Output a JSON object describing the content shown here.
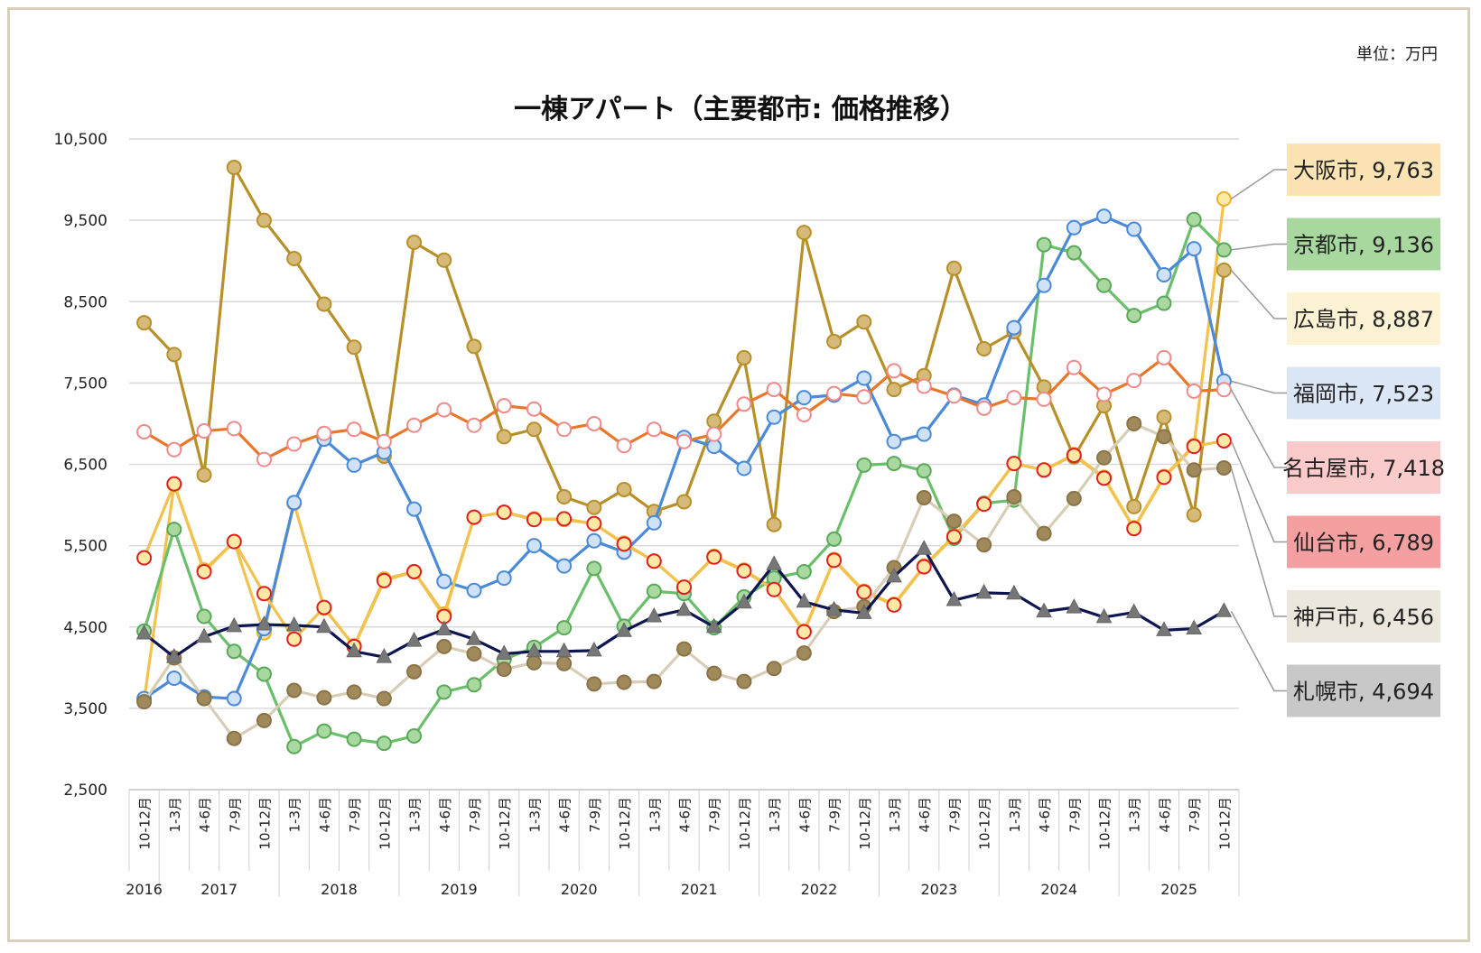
{
  "unit_label": "単位：万円",
  "chart_data": {
    "type": "line",
    "title": "一棟アパート（主要都市: 価格推移）",
    "ylim": [
      2500,
      10500
    ],
    "yticks": [
      2500,
      3500,
      4500,
      5500,
      6500,
      7500,
      8500,
      9500,
      10500
    ],
    "ytick_labels": [
      "2,500",
      "3,500",
      "4,500",
      "5,500",
      "6,500",
      "7,500",
      "8,500",
      "9,500",
      "10,500"
    ],
    "grid": true,
    "categories": [
      "10-12月",
      "1-3月",
      "4-6月",
      "7-9月",
      "10-12月",
      "1-3月",
      "4-6月",
      "7-9月",
      "10-12月",
      "1-3月",
      "4-6月",
      "7-9月",
      "10-12月",
      "1-3月",
      "4-6月",
      "7-9月",
      "10-12月",
      "1-3月",
      "4-6月",
      "7-9月",
      "10-12月",
      "1-3月",
      "4-6月",
      "7-9月",
      "10-12月",
      "1-3月",
      "4-6月",
      "7-9月",
      "10-12月",
      "1-3月",
      "4-6月",
      "7-9月",
      "10-12月",
      "1-3月",
      "4-6月",
      "7-9月",
      "10-12月"
    ],
    "years": [
      {
        "label": "2016",
        "start": 0,
        "end": 0
      },
      {
        "label": "2017",
        "start": 1,
        "end": 4
      },
      {
        "label": "2018",
        "start": 5,
        "end": 8
      },
      {
        "label": "2019",
        "start": 9,
        "end": 12
      },
      {
        "label": "2020",
        "start": 13,
        "end": 16
      },
      {
        "label": "2021",
        "start": 17,
        "end": 20
      },
      {
        "label": "2022",
        "start": 21,
        "end": 24
      },
      {
        "label": "2023",
        "start": 25,
        "end": 28
      },
      {
        "label": "2024",
        "start": 29,
        "end": 32
      },
      {
        "label": "2025",
        "start": 33,
        "end": 36
      }
    ],
    "series": [
      {
        "name": "大阪市",
        "label": "大阪市, 9,763",
        "line_color": "#f2c14e",
        "marker_fill": "#fce9a6",
        "marker_stroke": "#e8b32a",
        "marker": "circle",
        "label_bg": "#fbe3b3",
        "values": [
          3600,
          6250,
          5200,
          5550,
          4430,
          6020,
          4730,
          4270,
          5090,
          5180,
          4660,
          5850,
          5910,
          5830,
          5820,
          5770,
          5530,
          5310,
          4990,
          5370,
          5200,
          4970,
          4450,
          5330,
          4940,
          4780,
          5250,
          5620,
          6020,
          6510,
          6430,
          6620,
          6340,
          5720,
          6350,
          6730,
          9763
        ]
      },
      {
        "name": "京都市",
        "label": "京都市, 9,136",
        "line_color": "#6abf6b",
        "marker_fill": "#a9d9a0",
        "marker_stroke": "#5aa95a",
        "marker": "circle",
        "label_bg": "#a8d8a0",
        "values": [
          4450,
          5700,
          4630,
          4200,
          3920,
          3030,
          3220,
          3120,
          3070,
          3160,
          3700,
          3790,
          4100,
          4250,
          4490,
          5220,
          4510,
          4940,
          4910,
          4490,
          4870,
          5100,
          5180,
          5580,
          6490,
          6510,
          6420,
          5590,
          6020,
          6060,
          9200,
          9100,
          8700,
          8330,
          8480,
          9510,
          9136
        ]
      },
      {
        "name": "広島市",
        "label": "広島市, 8,887",
        "line_color": "#b8902a",
        "marker_fill": "#d6ba7a",
        "marker_stroke": "#b8902a",
        "marker": "circle",
        "label_bg": "#fdf2d3",
        "values": [
          8240,
          7850,
          6370,
          10150,
          9500,
          9030,
          8470,
          7940,
          6600,
          9230,
          9010,
          7950,
          6840,
          6930,
          6100,
          5970,
          6190,
          5920,
          6040,
          7030,
          7810,
          5760,
          9350,
          8010,
          8250,
          7420,
          7590,
          8910,
          7920,
          8130,
          7450,
          6590,
          7220,
          5980,
          7080,
          5880,
          8887
        ]
      },
      {
        "name": "福岡市",
        "label": "福岡市, 7,523",
        "line_color": "#4a8ad8",
        "marker_fill": "#cfe2f7",
        "marker_stroke": "#4a8ad8",
        "marker": "circle",
        "label_bg": "#dbe6f7",
        "values": [
          3620,
          3870,
          3640,
          3620,
          4480,
          6030,
          6810,
          6490,
          6650,
          5950,
          5060,
          4950,
          5100,
          5500,
          5250,
          5560,
          5420,
          5780,
          6830,
          6720,
          6450,
          7080,
          7320,
          7350,
          7560,
          6780,
          6870,
          7350,
          7230,
          8180,
          8700,
          9410,
          9550,
          9390,
          8830,
          9150,
          7523
        ]
      },
      {
        "name": "名古屋市",
        "label": "名古屋市, 7,418",
        "line_color": "#e8772a",
        "marker_fill": "#ffffff",
        "marker_stroke": "#ee8a8a",
        "marker": "circle",
        "label_bg": "#fbcaca",
        "values": [
          6900,
          6680,
          6910,
          6940,
          6560,
          6750,
          6880,
          6930,
          6780,
          6980,
          7170,
          6980,
          7220,
          7180,
          6930,
          7000,
          6730,
          6930,
          6780,
          6870,
          7240,
          7420,
          7110,
          7370,
          7330,
          7650,
          7460,
          7340,
          7190,
          7320,
          7300,
          7690,
          7360,
          7530,
          7810,
          7400,
          7418
        ]
      },
      {
        "name": "仙台市",
        "label": "仙台市, 6,789",
        "line_color": "#f2c14e",
        "marker_fill": "#fce9a6",
        "marker_stroke": "#e02020",
        "marker": "circle",
        "label_bg": "#f4a0a0",
        "values": [
          5350,
          6260,
          5180,
          5550,
          4910,
          4350,
          4740,
          4260,
          5070,
          5180,
          4630,
          5850,
          5910,
          5820,
          5830,
          5770,
          5520,
          5310,
          4990,
          5360,
          5190,
          4960,
          4440,
          5320,
          4930,
          4770,
          5240,
          5610,
          6010,
          6510,
          6430,
          6610,
          6330,
          5710,
          6340,
          6720,
          6789
        ]
      },
      {
        "name": "神戸市",
        "label": "神戸市, 6,456",
        "line_color": "#d8cdb6",
        "marker_fill": "#a08a5c",
        "marker_stroke": "#8a7447",
        "marker": "circle",
        "label_bg": "#ece7dc",
        "values": [
          3580,
          4120,
          3620,
          3130,
          3350,
          3720,
          3630,
          3700,
          3620,
          3950,
          4260,
          4170,
          3980,
          4060,
          4050,
          3800,
          3820,
          3830,
          4230,
          3930,
          3830,
          3990,
          4180,
          4690,
          4750,
          5230,
          6090,
          5800,
          5510,
          6100,
          5650,
          6080,
          6580,
          7000,
          6840,
          6430,
          6456
        ]
      },
      {
        "name": "札幌市",
        "label": "札幌市, 4,694",
        "line_color": "#0e1550",
        "marker_fill": "#777777",
        "marker_stroke": "#666666",
        "marker": "triangle",
        "label_bg": "#c8c8c8",
        "values": [
          4420,
          4130,
          4380,
          4510,
          4530,
          4520,
          4500,
          4200,
          4130,
          4330,
          4470,
          4350,
          4170,
          4200,
          4200,
          4210,
          4450,
          4630,
          4710,
          4500,
          4800,
          5270,
          4810,
          4710,
          4670,
          5120,
          5460,
          4830,
          4920,
          4910,
          4690,
          4740,
          4620,
          4680,
          4460,
          4480,
          4694
        ]
      }
    ]
  }
}
